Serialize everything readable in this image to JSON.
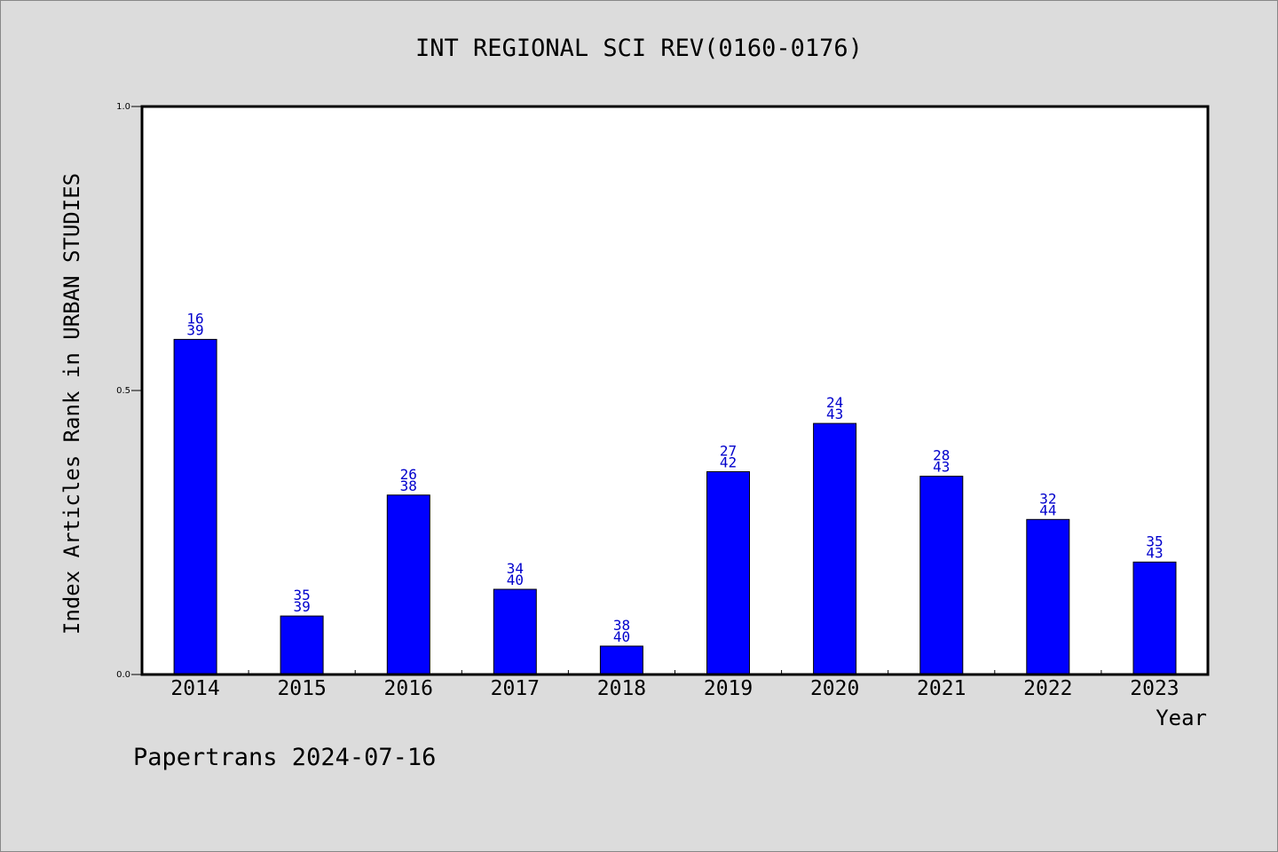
{
  "chart_data": {
    "type": "bar",
    "title": "INT REGIONAL SCI REV(0160-0176)",
    "xlabel": "Year",
    "ylabel": "Index Articles Rank in URBAN STUDIES",
    "categories": [
      "2014",
      "2015",
      "2016",
      "2017",
      "2018",
      "2019",
      "2020",
      "2021",
      "2022",
      "2023"
    ],
    "values": [
      0.59,
      0.103,
      0.316,
      0.15,
      0.05,
      0.357,
      0.442,
      0.349,
      0.273,
      0.198
    ],
    "rank": [
      "16",
      "35",
      "26",
      "34",
      "38",
      "27",
      "24",
      "28",
      "32",
      "35"
    ],
    "total": [
      "39",
      "39",
      "38",
      "40",
      "40",
      "42",
      "43",
      "43",
      "44",
      "43"
    ],
    "ylim": [
      0,
      1.0
    ],
    "yticks": [
      "0.0",
      "0.5",
      "1.0"
    ],
    "bar_color": "#0000ff",
    "label_color": "#0000cc",
    "background": "#dcdcdc",
    "plot_background": "#ffffff",
    "grid": false,
    "legend": "none"
  },
  "footer": "Papertrans 2024-07-16"
}
